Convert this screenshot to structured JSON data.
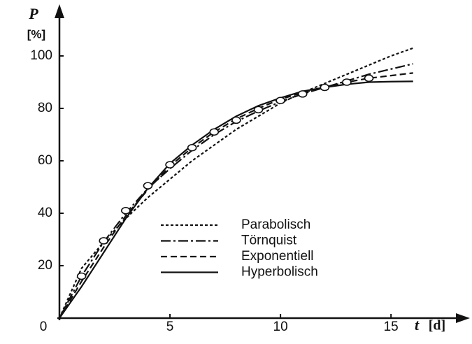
{
  "chart_data": {
    "type": "line",
    "y_label": "P",
    "y_unit": "[%]",
    "x_label": "t",
    "x_unit": "[d]",
    "x": [
      0,
      1,
      2,
      3,
      4,
      5,
      6,
      7,
      8,
      9,
      10,
      11,
      12,
      13,
      14,
      15,
      16
    ],
    "series": [
      {
        "name": "Parabolisch",
        "color": "#111111",
        "dash": "4,3",
        "values": [
          0,
          19,
          29,
          38,
          46,
          53,
          60,
          66,
          72,
          77,
          82,
          86,
          89.5,
          93,
          96.5,
          100,
          103
        ]
      },
      {
        "name": "Törnquist",
        "color": "#111111",
        "dash": "14,4,3,4",
        "values": [
          0,
          16,
          29,
          40,
          49.5,
          57,
          64,
          70,
          75,
          79,
          82.5,
          85.5,
          88,
          90.5,
          93,
          95,
          97
        ]
      },
      {
        "name": "Exponentiell",
        "color": "#111111",
        "dash": "9,5",
        "values": [
          0,
          14,
          27,
          39,
          49,
          58,
          65,
          71,
          76,
          80,
          83.5,
          86,
          88,
          90,
          91.5,
          92.5,
          93.5
        ]
      },
      {
        "name": "Hyperbolisch",
        "color": "#111111",
        "dash": "none",
        "values": [
          0,
          12,
          25,
          38,
          49.5,
          59,
          66,
          72,
          77,
          81,
          84,
          86.5,
          88,
          89.2,
          90,
          90.2,
          90.3
        ]
      }
    ],
    "points": {
      "x": [
        1,
        2,
        3,
        4,
        5,
        6,
        7,
        8,
        9,
        10,
        11,
        12,
        13,
        14
      ],
      "values": [
        16,
        29.5,
        41,
        50.5,
        58.5,
        65,
        71,
        75.5,
        79.5,
        83,
        85.5,
        88,
        90,
        91.5
      ]
    },
    "xlim": [
      0,
      18
    ],
    "ylim": [
      0,
      117
    ],
    "xticks": [
      0,
      5,
      10,
      15
    ],
    "yticks": [
      20,
      40,
      60,
      80,
      100
    ]
  }
}
